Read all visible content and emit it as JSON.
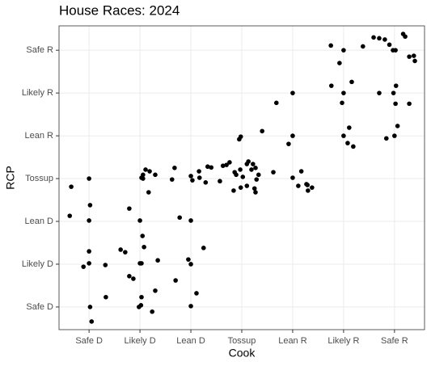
{
  "chart_data": {
    "type": "scatter",
    "title": "House Races: 2024",
    "x_label": "Cook",
    "y_label": "RCP",
    "color": "#000000",
    "grid": true,
    "xlim": [
      0.41,
      7.59
    ],
    "ylim": [
      0.47,
      7.57
    ],
    "xticks": [
      {
        "value": 1,
        "label": "Safe D"
      },
      {
        "value": 2,
        "label": "Likely D"
      },
      {
        "value": 3,
        "label": "Lean D"
      },
      {
        "value": 4,
        "label": "Tossup"
      },
      {
        "value": 5,
        "label": "Lean R"
      },
      {
        "value": 6,
        "label": "Likely R"
      },
      {
        "value": 7,
        "label": "Safe R"
      }
    ],
    "yticks": [
      {
        "value": 1,
        "label": "Safe D"
      },
      {
        "value": 2,
        "label": "Likely D"
      },
      {
        "value": 3,
        "label": "Lean D"
      },
      {
        "value": 4,
        "label": "Tossup"
      },
      {
        "value": 5,
        "label": "Lean R"
      },
      {
        "value": 6,
        "label": "Likely R"
      },
      {
        "value": 7,
        "label": "Safe R"
      }
    ],
    "x": [
      0.65,
      0.62,
      1.0,
      1.02,
      1.0,
      1.0,
      0.89,
      1.0,
      1.32,
      1.02,
      1.33,
      1.05,
      1.79,
      2.0,
      2.05,
      2.08,
      1.62,
      1.71,
      2.0,
      2.03,
      2.35,
      1.79,
      1.87,
      2.03,
      2.3,
      2.02,
      1.98,
      2.24,
      2.06,
      2.03,
      2.11,
      2.19,
      2.3,
      2.17,
      2.06,
      2.68,
      2.63,
      3.0,
      3.03,
      3.16,
      3.17,
      3.29,
      3.33,
      3.4,
      3.57,
      2.78,
      3.0,
      3.25,
      2.95,
      3.0,
      2.7,
      3.11,
      3.0,
      3.63,
      3.7,
      3.76,
      3.86,
      3.89,
      3.97,
      4.02,
      3.95,
      3.98,
      4.1,
      4.13,
      4.22,
      4.27,
      4.33,
      4.29,
      4.25,
      4.27,
      4.1,
      3.84,
      3.98,
      4.4,
      4.62,
      4.19,
      4.68,
      5.0,
      5.0,
      4.92,
      5.0,
      5.11,
      5.17,
      5.27,
      5.3,
      5.38,
      5.29,
      5.75,
      6.0,
      5.92,
      5.76,
      6.16,
      6.0,
      5.97,
      6.11,
      6.0,
      6.19,
      6.08,
      6.38,
      6.59,
      6.7,
      6.81,
      6.9,
      6.97,
      7.02,
      7.17,
      7.21,
      7.29,
      7.38,
      7.4,
      6.7,
      6.98,
      7.03,
      7.02,
      7.29,
      7.06,
      7.0,
      6.84
    ],
    "y": [
      3.81,
      3.13,
      4.0,
      3.38,
      3.02,
      2.3,
      1.94,
      2.02,
      1.98,
      1.0,
      1.23,
      0.66,
      3.3,
      3.02,
      2.66,
      2.4,
      2.34,
      2.28,
      2.02,
      2.02,
      2.09,
      1.72,
      1.66,
      1.23,
      1.38,
      1.04,
      1.0,
      0.89,
      4.09,
      4.02,
      4.21,
      4.17,
      4.09,
      3.68,
      4.0,
      4.25,
      3.98,
      4.06,
      3.96,
      4.17,
      4.02,
      3.91,
      4.28,
      4.26,
      3.94,
      3.09,
      3.02,
      2.38,
      2.11,
      2.0,
      1.62,
      1.32,
      1.02,
      4.3,
      4.32,
      4.38,
      4.15,
      4.09,
      4.21,
      4.04,
      4.92,
      4.98,
      4.34,
      4.4,
      4.34,
      4.25,
      4.09,
      3.98,
      3.77,
      3.68,
      3.83,
      3.72,
      3.79,
      5.11,
      4.15,
      4.21,
      5.77,
      6.0,
      5.0,
      4.81,
      4.02,
      3.83,
      4.17,
      3.87,
      3.72,
      3.79,
      3.85,
      7.11,
      7.0,
      6.7,
      6.17,
      6.26,
      6.0,
      5.77,
      5.19,
      5.0,
      4.75,
      4.83,
      7.09,
      7.3,
      7.28,
      7.25,
      7.13,
      7.0,
      7.0,
      7.38,
      7.32,
      6.85,
      6.87,
      6.75,
      6.0,
      6.0,
      6.17,
      5.75,
      5.75,
      5.23,
      5.0,
      4.94
    ]
  }
}
